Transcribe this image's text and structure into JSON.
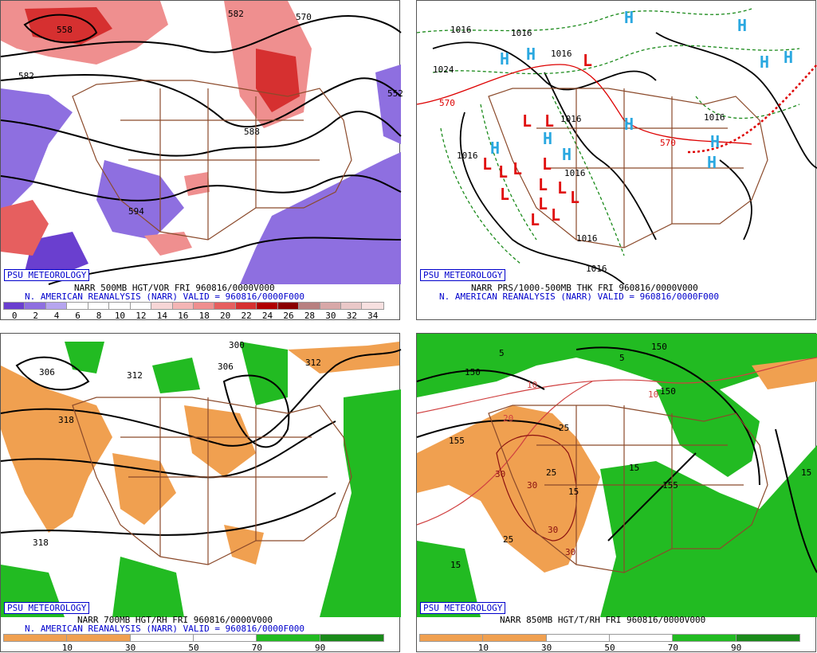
{
  "panels": {
    "vor": {
      "brand": "PSU METEOROLOGY",
      "caption_line1": "NARR 500MB HGT/VOR FRI 960816/0000V000",
      "caption_line2": "N. AMERICAN REANALYSIS (NARR) VALID = 960816/0000F000",
      "scale_labels": [
        "0",
        "2",
        "4",
        "6",
        "8",
        "10",
        "12",
        "14",
        "16",
        "18",
        "20",
        "22",
        "24",
        "26",
        "28",
        "30",
        "32",
        "34"
      ],
      "scale_colors": [
        "#6a3fcf",
        "#8e6fe0",
        "#b6a5ef",
        "#ffffff",
        "#ffffff",
        "#ffffff",
        "#ffffff",
        "#f7d6d6",
        "#f4b5b5",
        "#ef8f8f",
        "#e65f5f",
        "#d63030",
        "#b00000",
        "#8a0000",
        "#b88080",
        "#d8a8a8",
        "#eac8c8",
        "#f7e0e0"
      ],
      "contour_labels": [
        "582",
        "570",
        "558",
        "588",
        "594",
        "582",
        "552"
      ]
    },
    "thk": {
      "brand": "PSU METEOROLOGY",
      "caption_line1": "NARR PRS/1000-500MB THK FRI 960816/0000V000",
      "caption_line2": "N. AMERICAN REANALYSIS (NARR) VALID = 960816/0000F000",
      "contour_labels": [
        "1016",
        "1016",
        "1024",
        "1016",
        "1016",
        "1016",
        "1016",
        "1016",
        "1016",
        "1016",
        "570",
        "570"
      ],
      "high_marker": "H",
      "low_marker": "L"
    },
    "rh700": {
      "brand": "PSU METEOROLOGY",
      "caption_line1": "NARR 700MB HGT/RH FRI 960816/0000V000",
      "caption_line2": "N. AMERICAN REANALYSIS (NARR) VALID = 960816/0000F000",
      "scale_labels": [
        "10",
        "30",
        "50",
        "70",
        "90"
      ],
      "scale_colors": [
        "#f0a050",
        "#f0a050",
        "#ffffff",
        "#ffffff",
        "#22bb22",
        "#1a8a1a"
      ],
      "contour_labels": [
        "306",
        "312",
        "300",
        "306",
        "312",
        "318",
        "318"
      ]
    },
    "rh850": {
      "brand": "PSU METEOROLOGY",
      "caption_line1": "NARR 850MB HGT/T/RH FRI 960816/0000V000",
      "scale_labels": [
        "10",
        "30",
        "50",
        "70",
        "90"
      ],
      "scale_colors": [
        "#f0a050",
        "#f0a050",
        "#ffffff",
        "#ffffff",
        "#22bb22",
        "#1a8a1a"
      ],
      "contour_labels": [
        "150",
        "150",
        "155",
        "150",
        "155",
        "5",
        "5",
        "10",
        "10",
        "15",
        "15",
        "20",
        "25",
        "25",
        "25",
        "30",
        "30",
        "30",
        "30",
        "15",
        "15"
      ]
    }
  }
}
